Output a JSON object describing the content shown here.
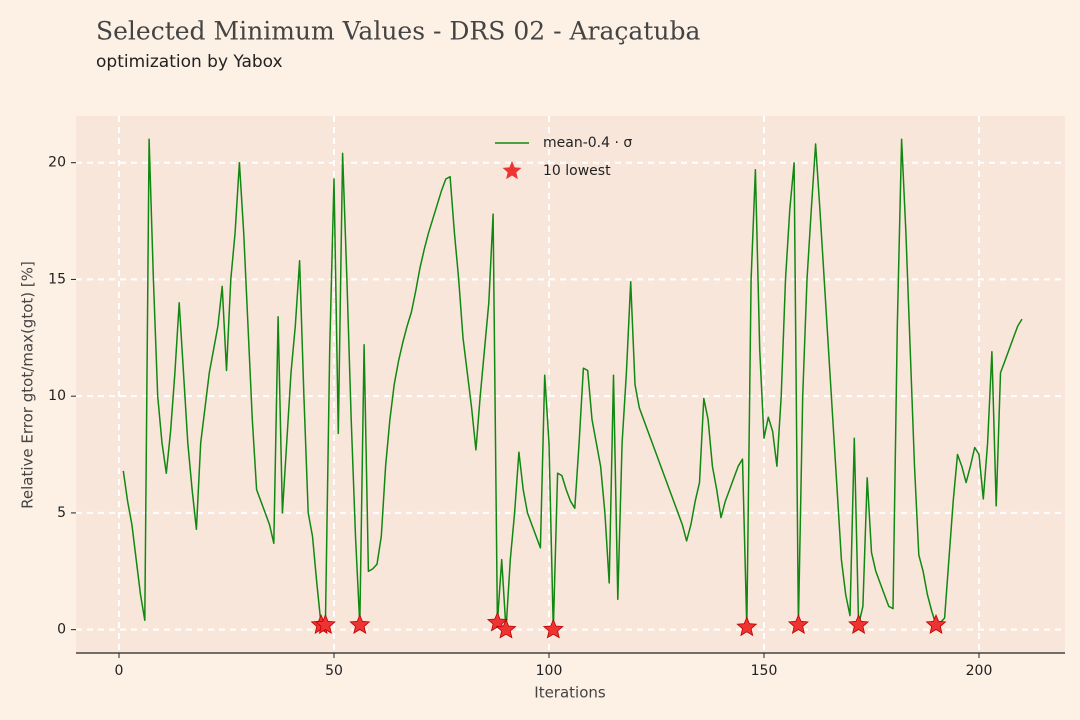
{
  "chart_data": {
    "type": "line",
    "title": "Selected Minimum Values - DRS 02 - Araçatuba",
    "subtitle": "optimization by Yabox",
    "xlabel": "Iterations",
    "ylabel": "Relative Error gtot/max(gtot) [%]",
    "xlim": [
      -10,
      220
    ],
    "ylim": [
      -1,
      22
    ],
    "xticks": [
      0,
      50,
      100,
      150,
      200
    ],
    "yticks": [
      0,
      5,
      10,
      15,
      20
    ],
    "grid": true,
    "legend": "upper center",
    "series": [
      {
        "name": "mean-0.4 · σ",
        "color": "#118811",
        "marker": "line",
        "x": [
          1,
          2,
          3,
          4,
          5,
          6,
          7,
          8,
          9,
          10,
          11,
          12,
          13,
          14,
          15,
          16,
          17,
          18,
          19,
          20,
          21,
          22,
          23,
          24,
          25,
          26,
          27,
          28,
          29,
          30,
          31,
          32,
          33,
          34,
          35,
          36,
          37,
          38,
          39,
          40,
          41,
          42,
          43,
          44,
          45,
          46,
          47,
          48,
          49,
          50,
          51,
          52,
          53,
          54,
          55,
          56,
          57,
          58,
          59,
          60,
          61,
          62,
          63,
          64,
          65,
          66,
          67,
          68,
          69,
          70,
          71,
          72,
          73,
          74,
          75,
          76,
          77,
          78,
          79,
          80,
          81,
          82,
          83,
          84,
          85,
          86,
          87,
          88,
          89,
          90,
          91,
          92,
          93,
          94,
          95,
          96,
          97,
          98,
          99,
          100,
          101,
          102,
          103,
          104,
          105,
          106,
          107,
          108,
          109,
          110,
          111,
          112,
          113,
          114,
          115,
          116,
          117,
          118,
          119,
          120,
          121,
          122,
          123,
          124,
          125,
          126,
          127,
          128,
          129,
          130,
          131,
          132,
          133,
          134,
          135,
          136,
          137,
          138,
          139,
          140,
          141,
          142,
          143,
          144,
          145,
          146,
          147,
          148,
          149,
          150,
          151,
          152,
          153,
          154,
          155,
          156,
          157,
          158,
          159,
          160,
          161,
          162,
          163,
          164,
          165,
          166,
          167,
          168,
          169,
          170,
          171,
          172,
          173,
          174,
          175,
          176,
          177,
          178,
          179,
          180,
          181,
          182,
          183,
          184,
          185,
          186,
          187,
          188,
          189,
          190,
          191,
          192,
          193,
          194,
          195,
          196,
          197,
          198,
          199,
          200,
          201,
          202,
          203,
          204,
          205,
          206,
          207,
          208,
          209,
          210
        ],
        "values": [
          6.8,
          5.5,
          4.5,
          3,
          1.5,
          0.4,
          21,
          15,
          10,
          8,
          6.7,
          8.5,
          11,
          14,
          11,
          8,
          6,
          4.3,
          8,
          9.5,
          11,
          12,
          13,
          14.7,
          11.1,
          15,
          17,
          20,
          17,
          13,
          9,
          6,
          5.5,
          5,
          4.5,
          3.7,
          13.4,
          5,
          8,
          11,
          13,
          15.8,
          10,
          5,
          4,
          2,
          0.2,
          0.2,
          12,
          19.3,
          8.4,
          20.4,
          15,
          9,
          4,
          0.2,
          12.2,
          2.5,
          2.6,
          2.8,
          4,
          7,
          9,
          10.5,
          11.5,
          12.3,
          13,
          13.6,
          14.5,
          15.5,
          16.3,
          17,
          17.6,
          18.2,
          18.8,
          19.3,
          19.4,
          17,
          15,
          12.5,
          11,
          9.5,
          7.7,
          10,
          12,
          14,
          17.8,
          0.3,
          3,
          0,
          3,
          5,
          7.6,
          6,
          5,
          4.5,
          4,
          3.5,
          10.9,
          8,
          0,
          6.7,
          6.6,
          6,
          5.5,
          5.2,
          8,
          11.2,
          11.1,
          9,
          8,
          7,
          5,
          2,
          10.9,
          1.3,
          8,
          11,
          14.9,
          10.5,
          9.5,
          9,
          8.5,
          8,
          7.5,
          7,
          6.5,
          6,
          5.5,
          5,
          4.5,
          3.8,
          4.5,
          5.5,
          6.3,
          9.9,
          9,
          7,
          6,
          4.8,
          5.5,
          6,
          6.5,
          7,
          7.3,
          0.1,
          15,
          19.7,
          12,
          8.2,
          9.1,
          8.5,
          7,
          10,
          15,
          18,
          20,
          0.2,
          10,
          15,
          18,
          20.8,
          18,
          15,
          12,
          9,
          6,
          3,
          1.5,
          0.6,
          8.2,
          0.2,
          1,
          6.5,
          3.3,
          2.5,
          2,
          1.5,
          1,
          0.9,
          13,
          21,
          17,
          12,
          7,
          3.2,
          2.5,
          1.5,
          0.8,
          0.2,
          0.3,
          0.5,
          3,
          5.5,
          7.5,
          7,
          6.3,
          7,
          7.8,
          7.5,
          5.6,
          8,
          11.9,
          5.3,
          11,
          11.5,
          12,
          12.5,
          13,
          13.3
        ]
      },
      {
        "name": "10 lowest",
        "color": "#ee3333",
        "marker": "star",
        "x": [
          47,
          48,
          56,
          88,
          90,
          101,
          146,
          158,
          172,
          190
        ],
        "values": [
          0.2,
          0.2,
          0.2,
          0.3,
          0,
          0,
          0.1,
          0.2,
          0.2,
          0.2
        ]
      }
    ]
  }
}
